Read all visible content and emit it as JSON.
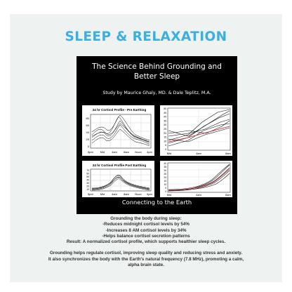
{
  "header": {
    "title": "SLEEP & RELAXATION"
  },
  "poster": {
    "title_line1": "The Science Behind Grounding and",
    "title_line2": "Better Sleep",
    "study": "Study by Maurice Ghaly, MD. & Dale Teplitz, M.A.",
    "footer": "Connecting to the Earth",
    "panels": {
      "pre": {
        "title": "24 hr Cortisol Profile - Pre Earthing",
        "y_ticks": [
          "80",
          "60",
          "40",
          "20",
          "0"
        ],
        "x_ticks": [
          "8pm",
          "Mid",
          "4am",
          "8am",
          "Noon",
          "4pm"
        ]
      },
      "post": {
        "title": "24 hr Cortisol Profile Post Earthing",
        "y_ticks": [
          "70",
          "60",
          "50",
          "40",
          "30",
          "20",
          "10",
          "0"
        ],
        "x_ticks": [
          "8pm",
          "Mid",
          "4am",
          "8am",
          "Noon",
          "4pm"
        ]
      },
      "right_top": {
        "y_ticks": [
          "50",
          "45",
          "40",
          "35",
          "30",
          "25",
          "20",
          "15",
          "10",
          "5",
          "0"
        ],
        "x_ticks": [
          "Mid",
          "4am",
          "8am"
        ]
      },
      "right_bottom": {
        "y_ticks": [
          "40",
          "35",
          "30",
          "25",
          "20",
          "15",
          "10",
          "5",
          "0"
        ],
        "x_ticks": [
          "Mid",
          "4am",
          "8am"
        ]
      }
    }
  },
  "caption": {
    "lines": [
      "Grounding the body during sleep:",
      "-Reduces midnight cortisol levels by 54%",
      "-Increases 8 AM cortisol levels by 34%",
      "-Helps balance cortisol secretion patterns",
      "Result: A normalized cortisol profile, which supports healthier sleep cycles."
    ],
    "lines2": [
      "Grounding helps regulate cortisol, improving sleep quality and reducing stress and anxiety.",
      "It also synchronizes the body with the Earth's natural frequency (7.8 MHz), promoting a calm,",
      "alpha brain state."
    ]
  }
}
